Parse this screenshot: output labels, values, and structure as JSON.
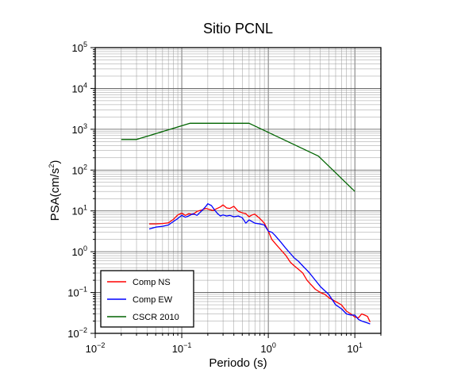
{
  "chart_data": {
    "type": "line",
    "title": "Sitio PCNL",
    "xlabel": "Periodo (s)",
    "ylabel": "PSA(cm/s",
    "ylabel_sup": "2",
    "ylabel_close": ")",
    "xscale": "log",
    "yscale": "log",
    "xlim": [
      0.01,
      20
    ],
    "ylim": [
      0.01,
      100000
    ],
    "grid": true,
    "legend_position": "bottom-left",
    "x_ticks": [
      {
        "base": "10",
        "exp": "−2",
        "value": 0.01
      },
      {
        "base": "10",
        "exp": "−1",
        "value": 0.1
      },
      {
        "base": "10",
        "exp": "0",
        "value": 1
      },
      {
        "base": "10",
        "exp": "1",
        "value": 10
      }
    ],
    "y_ticks": [
      {
        "base": "10",
        "exp": "−2",
        "value": 0.01
      },
      {
        "base": "10",
        "exp": "−1",
        "value": 0.1
      },
      {
        "base": "10",
        "exp": "0",
        "value": 1
      },
      {
        "base": "10",
        "exp": "1",
        "value": 10
      },
      {
        "base": "10",
        "exp": "2",
        "value": 100
      },
      {
        "base": "10",
        "exp": "3",
        "value": 1000
      },
      {
        "base": "10",
        "exp": "4",
        "value": 10000
      },
      {
        "base": "10",
        "exp": "5",
        "value": 100000
      }
    ],
    "series": [
      {
        "name": "Comp NS",
        "color": "#ff0000",
        "points": [
          [
            0.042,
            4.8
          ],
          [
            0.05,
            4.8
          ],
          [
            0.06,
            4.9
          ],
          [
            0.07,
            5.1
          ],
          [
            0.08,
            6.2
          ],
          [
            0.09,
            8.0
          ],
          [
            0.1,
            8.8
          ],
          [
            0.11,
            7.8
          ],
          [
            0.12,
            8.5
          ],
          [
            0.135,
            8.2
          ],
          [
            0.15,
            9.8
          ],
          [
            0.17,
            10.5
          ],
          [
            0.19,
            11.5
          ],
          [
            0.21,
            10.8
          ],
          [
            0.23,
            10.2
          ],
          [
            0.25,
            11.2
          ],
          [
            0.28,
            12.5
          ],
          [
            0.3,
            14.0
          ],
          [
            0.33,
            11.8
          ],
          [
            0.36,
            11.5
          ],
          [
            0.4,
            13.0
          ],
          [
            0.45,
            9.8
          ],
          [
            0.5,
            9.0
          ],
          [
            0.55,
            8.5
          ],
          [
            0.6,
            7.2
          ],
          [
            0.65,
            8.0
          ],
          [
            0.7,
            8.3
          ],
          [
            0.8,
            6.5
          ],
          [
            0.9,
            5.0
          ],
          [
            1.0,
            3.2
          ],
          [
            1.1,
            2.0
          ],
          [
            1.2,
            1.6
          ],
          [
            1.4,
            1.1
          ],
          [
            1.6,
            0.8
          ],
          [
            1.8,
            0.55
          ],
          [
            2.0,
            0.45
          ],
          [
            2.2,
            0.38
          ],
          [
            2.5,
            0.3
          ],
          [
            2.8,
            0.2
          ],
          [
            3.0,
            0.17
          ],
          [
            3.5,
            0.12
          ],
          [
            4.0,
            0.1
          ],
          [
            4.5,
            0.09
          ],
          [
            5.0,
            0.075
          ],
          [
            6.0,
            0.06
          ],
          [
            7.0,
            0.05
          ],
          [
            8.0,
            0.035
          ],
          [
            9.0,
            0.03
          ],
          [
            10.0,
            0.025
          ],
          [
            11.0,
            0.024
          ],
          [
            12.0,
            0.03
          ],
          [
            13.0,
            0.028
          ],
          [
            14.0,
            0.026
          ],
          [
            15.0,
            0.019
          ]
        ]
      },
      {
        "name": "Comp EW",
        "color": "#0000ff",
        "points": [
          [
            0.042,
            3.6
          ],
          [
            0.05,
            4.0
          ],
          [
            0.06,
            4.2
          ],
          [
            0.07,
            4.5
          ],
          [
            0.08,
            5.5
          ],
          [
            0.09,
            6.5
          ],
          [
            0.1,
            7.8
          ],
          [
            0.11,
            7.0
          ],
          [
            0.12,
            7.5
          ],
          [
            0.135,
            8.5
          ],
          [
            0.15,
            7.8
          ],
          [
            0.17,
            10.0
          ],
          [
            0.19,
            13.0
          ],
          [
            0.2,
            15.0
          ],
          [
            0.22,
            13.5
          ],
          [
            0.24,
            10.5
          ],
          [
            0.26,
            8.5
          ],
          [
            0.28,
            7.5
          ],
          [
            0.3,
            8.0
          ],
          [
            0.33,
            7.5
          ],
          [
            0.36,
            7.8
          ],
          [
            0.4,
            7.2
          ],
          [
            0.45,
            7.5
          ],
          [
            0.5,
            6.8
          ],
          [
            0.55,
            5.0
          ],
          [
            0.6,
            6.0
          ],
          [
            0.7,
            5.0
          ],
          [
            0.8,
            4.8
          ],
          [
            0.9,
            4.5
          ],
          [
            1.0,
            3.2
          ],
          [
            1.1,
            3.0
          ],
          [
            1.2,
            2.5
          ],
          [
            1.4,
            1.7
          ],
          [
            1.6,
            1.2
          ],
          [
            1.8,
            0.9
          ],
          [
            2.0,
            0.7
          ],
          [
            2.2,
            0.6
          ],
          [
            2.5,
            0.45
          ],
          [
            2.8,
            0.35
          ],
          [
            3.0,
            0.3
          ],
          [
            3.5,
            0.2
          ],
          [
            4.0,
            0.14
          ],
          [
            4.5,
            0.11
          ],
          [
            5.0,
            0.09
          ],
          [
            6.0,
            0.05
          ],
          [
            7.0,
            0.04
          ],
          [
            8.0,
            0.03
          ],
          [
            9.0,
            0.028
          ],
          [
            10.0,
            0.028
          ],
          [
            11.0,
            0.022
          ],
          [
            12.0,
            0.02
          ],
          [
            13.0,
            0.019
          ],
          [
            14.0,
            0.018
          ],
          [
            15.0,
            0.017
          ]
        ]
      },
      {
        "name": "CSCR 2010",
        "color": "#006400",
        "points": [
          [
            0.02,
            560
          ],
          [
            0.03,
            560
          ],
          [
            0.125,
            1400
          ],
          [
            0.6,
            1400
          ],
          [
            3.8,
            220
          ],
          [
            10.0,
            30
          ]
        ]
      }
    ]
  }
}
